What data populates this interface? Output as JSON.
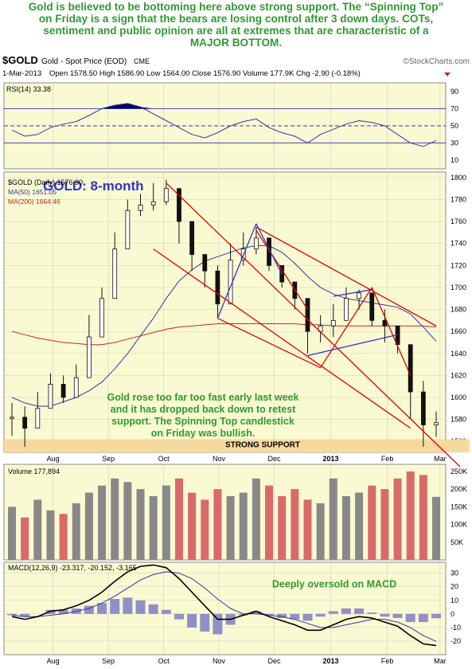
{
  "headline": {
    "lines": [
      "Gold is believed to be bottoming here above strong support. The “Spinning Top”",
      "on Friday is a sign that the bears are losing control after 3 down days. COTs,",
      "sentiment and public opinion are all at extremes that are characteristic of a",
      "MAJOR BOTTOM."
    ]
  },
  "header": {
    "symbol": "$GOLD",
    "description": "Gold - Spot Price (EOD)",
    "exchange": "CME",
    "credit": "©StockCharts.com",
    "date": "1-Mar-2013",
    "quote": "Open 1578.50  High 1586.90  Low 1564.00  Close 1576.90  Volume 177.9K  Chg -2.90 (-0.18%)"
  },
  "colors": {
    "panel_bg": "#fafad2",
    "grid": "#cccccc",
    "candle": "#111111",
    "ma50": "#3333aa",
    "ma200": "#cc2222",
    "trendline": "#dd0000",
    "triangle": "#3333cc",
    "support_band": "#f7d9a0",
    "annotation_green": "#2f9a2f",
    "title_blue": "#3333cc",
    "vol_up": "#888888",
    "vol_down": "#d96a6a",
    "macd_line": "#000000",
    "signal_line": "#3333aa",
    "histogram": "#9090c8",
    "rsi_fill": "#000066"
  },
  "chart_data": [
    {
      "type": "line",
      "panel": "rsi",
      "legend": "RSI(14) 33.38",
      "ylim": [
        0,
        100
      ],
      "yticks": [
        90,
        70,
        50,
        30,
        10
      ],
      "reference_lines": [
        70,
        50,
        30
      ],
      "x": [
        "Jul 15",
        "Jul 22",
        "Jul 29",
        "Aug 5",
        "Aug 12",
        "Aug 19",
        "Aug 26",
        "Sep 2",
        "Sep 9",
        "Sep 16",
        "Sep 23",
        "Sep 30",
        "Oct 7",
        "Oct 14",
        "Oct 21",
        "Oct 28",
        "Nov 4",
        "Nov 11",
        "Nov 18",
        "Nov 25",
        "Dec 2",
        "Dec 9",
        "Dec 16",
        "Dec 23",
        "Dec 30",
        "Jan 6",
        "Jan 13",
        "Jan 20",
        "Jan 27",
        "Feb 3",
        "Feb 10",
        "Feb 17",
        "Feb 24",
        "Mar 1"
      ],
      "values": [
        45,
        38,
        40,
        48,
        52,
        55,
        62,
        70,
        74,
        76,
        72,
        64,
        56,
        48,
        40,
        36,
        42,
        50,
        55,
        58,
        48,
        42,
        38,
        30,
        40,
        46,
        52,
        56,
        54,
        50,
        40,
        30,
        26,
        33
      ]
    },
    {
      "type": "candlestick",
      "panel": "price",
      "title": "GOLD: 8-month",
      "legend": [
        "$GOLD (Daily) 1576.90",
        "MA(50) 1651.05",
        "MA(200) 1664.46"
      ],
      "ylim": [
        1550,
        1805
      ],
      "yticks": [
        1800,
        1780,
        1760,
        1740,
        1720,
        1700,
        1680,
        1660,
        1640,
        1620,
        1600,
        1580,
        1560
      ],
      "xtick_labels": [
        "Aug",
        "Sep",
        "Oct",
        "Nov",
        "Dec",
        "2013",
        "Feb",
        "Mar"
      ],
      "x": [
        "Jul 15",
        "Jul 22",
        "Jul 29",
        "Aug 5",
        "Aug 12",
        "Aug 19",
        "Aug 26",
        "Sep 2",
        "Sep 9",
        "Sep 16",
        "Sep 23",
        "Sep 30",
        "Oct 7",
        "Oct 14",
        "Oct 21",
        "Oct 28",
        "Nov 4",
        "Nov 11",
        "Nov 18",
        "Nov 25",
        "Dec 2",
        "Dec 9",
        "Dec 16",
        "Dec 23",
        "Dec 30",
        "Jan 6",
        "Jan 13",
        "Jan 20",
        "Jan 27",
        "Feb 3",
        "Feb 10",
        "Feb 17",
        "Feb 24",
        "Mar 1"
      ],
      "close": [
        1582,
        1572,
        1590,
        1612,
        1600,
        1618,
        1655,
        1690,
        1735,
        1770,
        1775,
        1778,
        1790,
        1760,
        1730,
        1715,
        1685,
        1725,
        1735,
        1745,
        1720,
        1705,
        1690,
        1660,
        1665,
        1670,
        1690,
        1695,
        1670,
        1665,
        1648,
        1605,
        1575,
        1577
      ],
      "high": [
        1595,
        1592,
        1605,
        1622,
        1620,
        1630,
        1675,
        1700,
        1750,
        1780,
        1785,
        1795,
        1798,
        1780,
        1745,
        1725,
        1720,
        1740,
        1750,
        1755,
        1740,
        1720,
        1705,
        1680,
        1675,
        1685,
        1700,
        1698,
        1690,
        1680,
        1665,
        1640,
        1615,
        1587
      ],
      "low": [
        1565,
        1555,
        1575,
        1600,
        1595,
        1605,
        1640,
        1680,
        1720,
        1760,
        1765,
        1770,
        1775,
        1740,
        1715,
        1700,
        1672,
        1705,
        1720,
        1730,
        1715,
        1700,
        1680,
        1640,
        1650,
        1655,
        1670,
        1680,
        1665,
        1650,
        1640,
        1580,
        1555,
        1564
      ],
      "ma50": [
        1600,
        1595,
        1592,
        1592,
        1596,
        1600,
        1606,
        1614,
        1626,
        1640,
        1656,
        1672,
        1690,
        1706,
        1716,
        1724,
        1728,
        1732,
        1736,
        1738,
        1738,
        1732,
        1722,
        1710,
        1700,
        1694,
        1690,
        1688,
        1686,
        1684,
        1682,
        1676,
        1664,
        1651
      ],
      "ma200": [
        1660,
        1657,
        1654,
        1652,
        1650,
        1649,
        1648,
        1648,
        1650,
        1653,
        1656,
        1659,
        1662,
        1664,
        1665,
        1666,
        1667,
        1667,
        1667,
        1667,
        1667,
        1667,
        1667,
        1666,
        1666,
        1665,
        1665,
        1665,
        1665,
        1665,
        1665,
        1665,
        1665,
        1664
      ],
      "annotations": [
        "Gold rose too far too fast early last week",
        "and it has dropped back down to retest",
        "support. The Spinning Top candlestick",
        "on Friday was bullish."
      ],
      "support_label": "STRONG SUPPORT",
      "support_range": [
        1550,
        1562
      ],
      "trendlines": [
        {
          "name": "downtrend-channel-upper",
          "from": [
            "Oct 7",
            1795
          ],
          "to": [
            "Mar 1",
            1550
          ]
        },
        {
          "name": "downtrend-channel-lower",
          "from": [
            "Oct 1",
            1735
          ],
          "to": [
            "Feb 17",
            1572
          ]
        },
        {
          "name": "falling-resistance",
          "from": [
            "Nov 25",
            1755
          ],
          "to": [
            "Mar 1",
            1665
          ]
        },
        {
          "name": "wedge-top",
          "from": [
            "Nov 25",
            1752
          ],
          "to": [
            "Dec 23",
            1680
          ]
        },
        {
          "name": "wedge-bottom",
          "from": [
            "Nov 4",
            1672
          ],
          "to": [
            "Dec 30",
            1627
          ]
        },
        {
          "name": "wedge-inner",
          "from": [
            "Dec 30",
            1627
          ],
          "to": [
            "Jan 27",
            1700
          ]
        },
        {
          "name": "wedge-inner-2",
          "from": [
            "Jan 27",
            1700
          ],
          "to": [
            "Feb 17",
            1620
          ]
        }
      ],
      "triangle": [
        {
          "from": [
            "Nov 4",
            1672
          ],
          "to": [
            "Nov 25",
            1758
          ]
        },
        {
          "from": [
            "Nov 25",
            1758
          ],
          "to": [
            "Dec 9",
            1712
          ]
        },
        {
          "from": [
            "Dec 23",
            1638
          ],
          "to": [
            "Feb 10",
            1657
          ]
        },
        {
          "from": [
            "Jan 6",
            1692
          ],
          "to": [
            "Jan 27",
            1698
          ]
        }
      ]
    },
    {
      "type": "bar",
      "panel": "volume",
      "legend": "Volume 177,894",
      "ylim": [
        0,
        270000
      ],
      "yticks": [
        "250K",
        "200K",
        "150K",
        "100K",
        "50K"
      ],
      "ytick_values": [
        250000,
        200000,
        150000,
        100000,
        50000
      ],
      "x": [
        "Jul 15",
        "Jul 22",
        "Jul 29",
        "Aug 5",
        "Aug 12",
        "Aug 19",
        "Aug 26",
        "Sep 2",
        "Sep 9",
        "Sep 16",
        "Sep 23",
        "Sep 30",
        "Oct 7",
        "Oct 14",
        "Oct 21",
        "Oct 28",
        "Nov 4",
        "Nov 11",
        "Nov 18",
        "Nov 25",
        "Dec 2",
        "Dec 9",
        "Dec 16",
        "Dec 23",
        "Dec 30",
        "Jan 6",
        "Jan 13",
        "Jan 20",
        "Jan 27",
        "Feb 3",
        "Feb 10",
        "Feb 17",
        "Feb 24",
        "Mar 1"
      ],
      "values": [
        150000,
        120000,
        170000,
        140000,
        130000,
        160000,
        190000,
        210000,
        230000,
        220000,
        200000,
        180000,
        210000,
        230000,
        190000,
        170000,
        200000,
        180000,
        190000,
        230000,
        210000,
        180000,
        200000,
        170000,
        160000,
        230000,
        180000,
        190000,
        210000,
        200000,
        230000,
        250000,
        240000,
        177894
      ]
    },
    {
      "type": "line",
      "panel": "macd",
      "legend": "MACD(12,26,9) -23.317, -20.152, -3.165",
      "annotation": "Deeply oversold on MACD",
      "ylim": [
        -30,
        38
      ],
      "yticks": [
        30,
        20,
        10,
        0,
        -10,
        -20
      ],
      "xtick_labels": [
        "Aug",
        "Sep",
        "Oct",
        "Nov",
        "Dec",
        "2013",
        "Feb",
        "Mar"
      ],
      "x": [
        "Jul 15",
        "Jul 22",
        "Jul 29",
        "Aug 5",
        "Aug 12",
        "Aug 19",
        "Aug 26",
        "Sep 2",
        "Sep 9",
        "Sep 16",
        "Sep 23",
        "Sep 30",
        "Oct 7",
        "Oct 14",
        "Oct 21",
        "Oct 28",
        "Nov 4",
        "Nov 11",
        "Nov 18",
        "Nov 25",
        "Dec 2",
        "Dec 9",
        "Dec 16",
        "Dec 23",
        "Dec 30",
        "Jan 6",
        "Jan 13",
        "Jan 20",
        "Jan 27",
        "Feb 3",
        "Feb 10",
        "Feb 17",
        "Feb 24",
        "Mar 1"
      ],
      "series": [
        {
          "name": "MACD",
          "values": [
            -2,
            -4,
            -2,
            2,
            3,
            6,
            10,
            16,
            24,
            31,
            35,
            36,
            34,
            26,
            16,
            6,
            -4,
            -4,
            -1,
            2,
            -2,
            -5,
            -8,
            -12,
            -12,
            -8,
            -4,
            -2,
            -3,
            -6,
            -9,
            -16,
            -22,
            -23.3
          ]
        },
        {
          "name": "Signal",
          "values": [
            -1,
            -2,
            -2,
            -1,
            0,
            2,
            4,
            8,
            13,
            19,
            25,
            29,
            31,
            30,
            26,
            19,
            11,
            4,
            0,
            0,
            -1,
            -2,
            -4,
            -7,
            -10,
            -10,
            -8,
            -6,
            -4,
            -4,
            -6,
            -10,
            -16,
            -20.2
          ]
        }
      ],
      "histogram": [
        -1,
        -2,
        0,
        3,
        3,
        4,
        6,
        8,
        11,
        12,
        10,
        7,
        3,
        -4,
        -10,
        -13,
        -15,
        -8,
        -1,
        2,
        -1,
        -3,
        -4,
        -5,
        -2,
        2,
        4,
        4,
        1,
        -2,
        -3,
        -6,
        -6,
        -3.2
      ]
    }
  ]
}
